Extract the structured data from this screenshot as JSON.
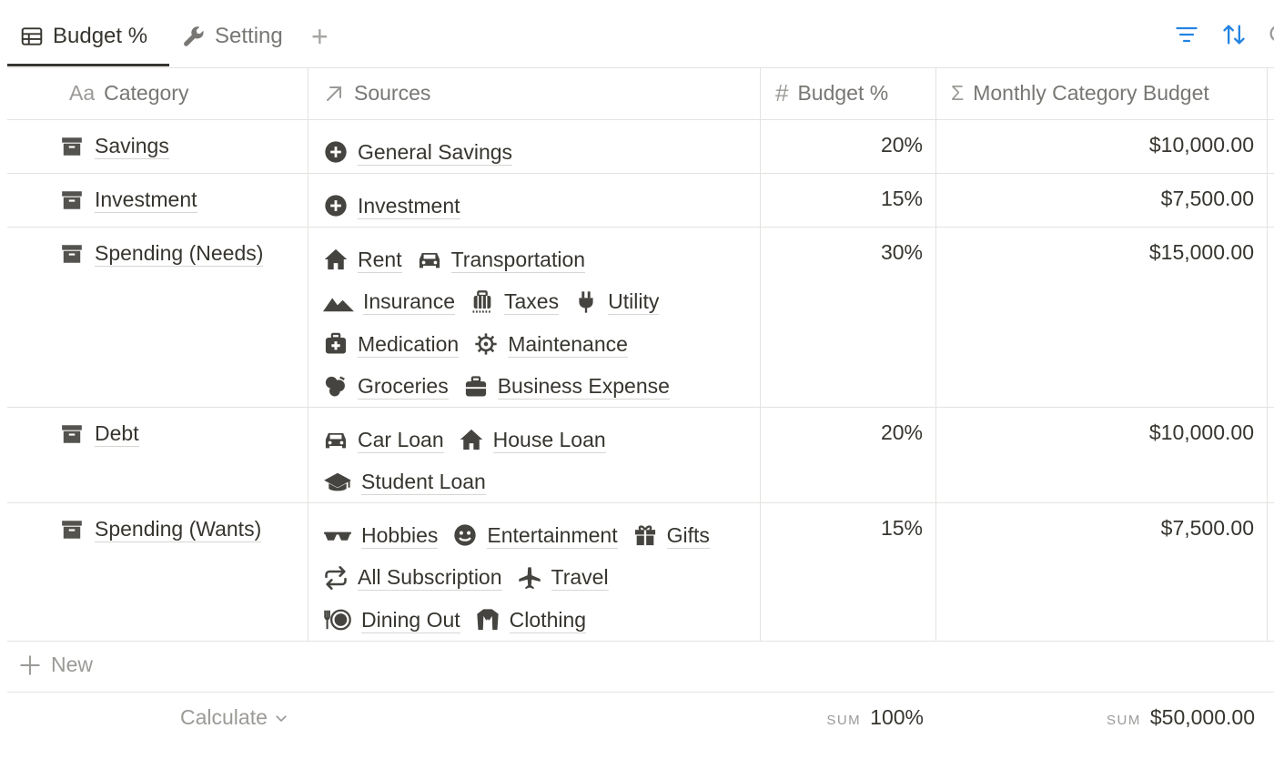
{
  "tabs": [
    {
      "label": "Budget %",
      "icon": "table-icon"
    },
    {
      "label": "Setting",
      "icon": "wrench-icon"
    }
  ],
  "add_tab_label": "+",
  "toolbar": {
    "filter_icon": "filter-icon",
    "sort_icon": "sort-icon",
    "accent": "#2383e2"
  },
  "columns": {
    "category": "Category",
    "category_icon_text": "Aa",
    "sources": "Sources",
    "budget_pct": "Budget %",
    "budget_pct_icon": "#",
    "monthly": "Monthly Category Budget",
    "monthly_icon": "Σ"
  },
  "rows": [
    {
      "category": "Savings",
      "sources": [
        [
          "General Savings"
        ]
      ],
      "pct": "20%",
      "budget": "$10,000.00"
    },
    {
      "category": "Investment",
      "sources": [
        [
          "Investment"
        ]
      ],
      "pct": "15%",
      "budget": "$7,500.00"
    },
    {
      "category": "Spending (Needs)",
      "sources": [
        [
          "Rent",
          "Transportation"
        ],
        [
          "Insurance",
          "Taxes",
          "Utility"
        ],
        [
          "Medication",
          "Maintenance"
        ],
        [
          "Groceries",
          "Business Expense"
        ]
      ],
      "pct": "30%",
      "budget": "$15,000.00"
    },
    {
      "category": "Debt",
      "sources": [
        [
          "Car Loan",
          "House Loan"
        ],
        [
          "Student Loan"
        ]
      ],
      "pct": "20%",
      "budget": "$10,000.00"
    },
    {
      "category": "Spending (Wants)",
      "sources": [
        [
          "Hobbies",
          "Entertainment",
          "Gifts"
        ],
        [
          "All Subscription",
          "Travel"
        ],
        [
          "Dining Out",
          "Clothing"
        ]
      ],
      "pct": "15%",
      "budget": "$7,500.00"
    }
  ],
  "new_label": "New",
  "footer": {
    "calculate": "Calculate",
    "sum_label": "SUM",
    "sum_pct": "100%",
    "sum_budget": "$50,000.00"
  }
}
